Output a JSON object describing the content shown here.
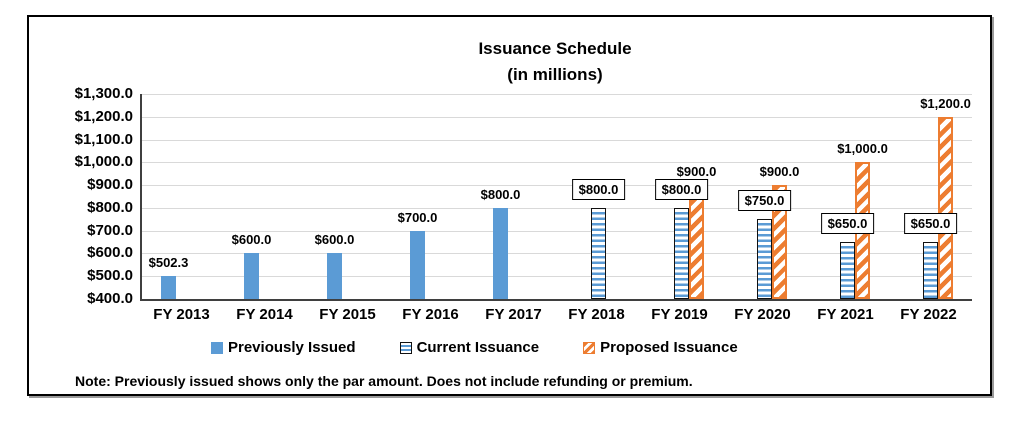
{
  "title": {
    "line1": "Issuance Schedule",
    "line2": "(in millions)"
  },
  "note": "Note: Previously issued shows only the par amount. Does not include refunding or premium.",
  "colors": {
    "previously_issued_blue": "#5b9bd5",
    "proposed_orange": "#ed7d31",
    "gridline_gray": "#d9d9d9",
    "axis_dark": "#3f3f3f",
    "text_black": "#000000"
  },
  "chart_data": {
    "type": "bar",
    "title": "Issuance Schedule",
    "subtitle": "(in millions)",
    "categories": [
      "FY 2013",
      "FY 2014",
      "FY 2015",
      "FY 2016",
      "FY 2017",
      "FY 2018",
      "FY 2019",
      "FY 2020",
      "FY 2021",
      "FY 2022"
    ],
    "series": [
      {
        "name": "Previously Issued",
        "pattern": "solid-blue",
        "label_style": "plain",
        "values": [
          502.3,
          600.0,
          600.0,
          700.0,
          800.0,
          null,
          null,
          null,
          null,
          null
        ],
        "labels": [
          "$502.3",
          "$600.0",
          "$600.0",
          "$700.0",
          "$800.0",
          null,
          null,
          null,
          null,
          null
        ]
      },
      {
        "name": "Current Issuance",
        "pattern": "blue-horizontal-stripes-black-outline",
        "label_style": "boxed",
        "values": [
          null,
          null,
          null,
          null,
          null,
          800.0,
          800.0,
          750.0,
          650.0,
          650.0
        ],
        "labels": [
          null,
          null,
          null,
          null,
          null,
          "$800.0",
          "$800.0",
          "$750.0",
          "$650.0",
          "$650.0"
        ]
      },
      {
        "name": "Proposed Issuance",
        "pattern": "orange-diagonal-stripes",
        "label_style": "plain",
        "values": [
          null,
          null,
          null,
          null,
          null,
          null,
          900.0,
          900.0,
          1000.0,
          1200.0
        ],
        "labels": [
          null,
          null,
          null,
          null,
          null,
          null,
          "$900.0",
          "$900.0",
          "$1,000.0",
          "$1,200.0"
        ]
      }
    ],
    "ylim": [
      400,
      1300
    ],
    "ytick_step": 100,
    "ytick_labels": [
      "$400.0",
      "$500.0",
      "$600.0",
      "$700.0",
      "$800.0",
      "$900.0",
      "$1,000.0",
      "$1,100.0",
      "$1,200.0",
      "$1,300.0"
    ],
    "grid": true,
    "legend_position": "bottom"
  }
}
